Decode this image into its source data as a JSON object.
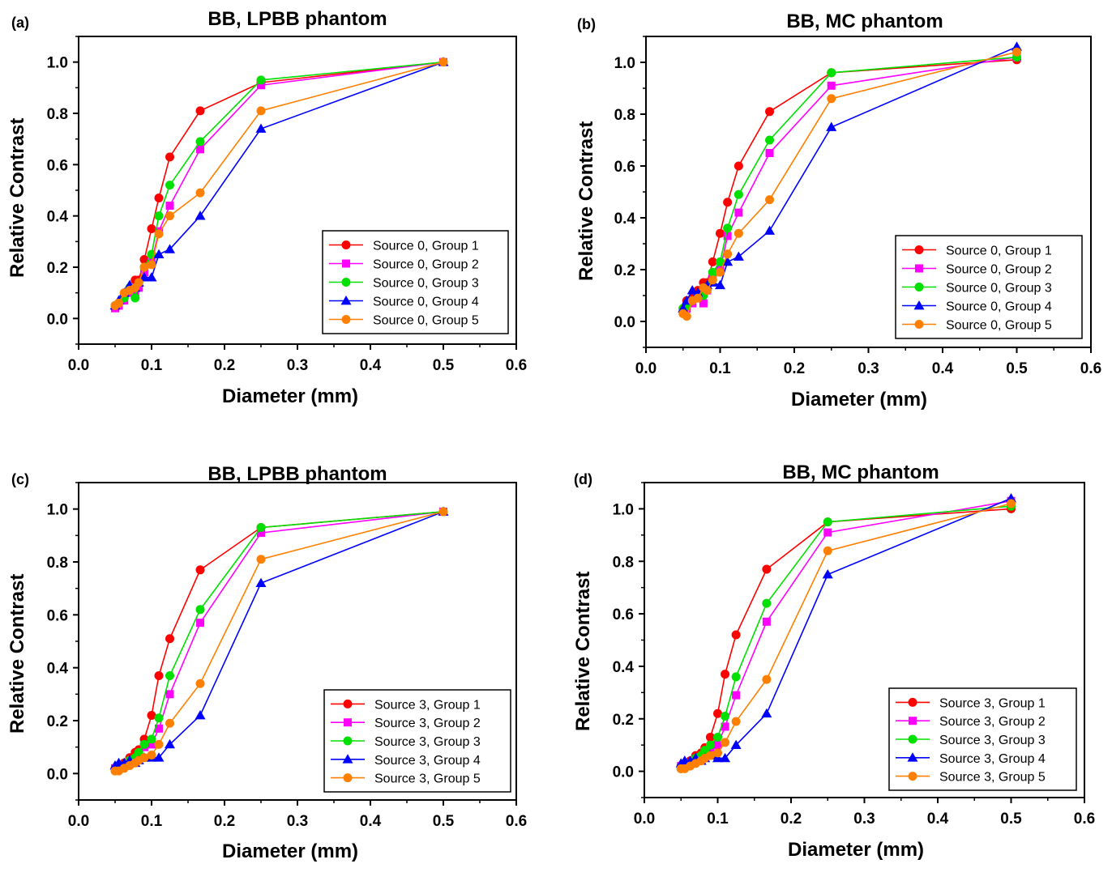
{
  "chart_data": [
    {
      "panel_label": "(a)",
      "type": "line",
      "title": "BB, LPBB phantom",
      "xlabel": "Diameter (mm)",
      "ylabel": "Relative Contrast",
      "xlim": [
        0.0,
        0.6
      ],
      "ylim": [
        -0.1,
        1.1
      ],
      "xticks": [
        "0.0",
        "0.1",
        "0.2",
        "0.3",
        "0.4",
        "0.5",
        "0.6"
      ],
      "yticks": [
        "0.0",
        "0.2",
        "0.4",
        "0.6",
        "0.8",
        "1.0"
      ],
      "legend_position": "bottom-right",
      "series": [
        {
          "name": "Source 0, Group 1",
          "color": "#ff0000",
          "marker": "circle",
          "x": [
            0.05,
            0.055,
            0.0625,
            0.07,
            0.0775,
            0.0825,
            0.09,
            0.1,
            0.11,
            0.125,
            0.1667,
            0.25,
            0.5
          ],
          "y": [
            0.05,
            0.06,
            0.09,
            0.11,
            0.15,
            0.15,
            0.23,
            0.35,
            0.47,
            0.63,
            0.81,
            0.92,
            1.0
          ]
        },
        {
          "name": "Source 0, Group 2",
          "color": "#ff00ff",
          "marker": "square",
          "x": [
            0.05,
            0.055,
            0.0625,
            0.07,
            0.0775,
            0.0825,
            0.09,
            0.1,
            0.11,
            0.125,
            0.1667,
            0.25,
            0.5
          ],
          "y": [
            0.04,
            0.05,
            0.07,
            0.1,
            0.1,
            0.12,
            0.18,
            0.22,
            0.34,
            0.44,
            0.66,
            0.91,
            1.0
          ]
        },
        {
          "name": "Source 0, Group 3",
          "color": "#00e000",
          "marker": "circle",
          "x": [
            0.05,
            0.055,
            0.0625,
            0.07,
            0.0775,
            0.0825,
            0.09,
            0.1,
            0.11,
            0.125,
            0.1667,
            0.25,
            0.5
          ],
          "y": [
            0.05,
            0.06,
            0.08,
            0.12,
            0.08,
            0.14,
            0.2,
            0.25,
            0.4,
            0.52,
            0.69,
            0.93,
            1.0
          ]
        },
        {
          "name": "Source 0, Group 4",
          "color": "#0000ff",
          "marker": "triangle",
          "x": [
            0.05,
            0.055,
            0.0625,
            0.07,
            0.0775,
            0.0825,
            0.09,
            0.1,
            0.11,
            0.125,
            0.1667,
            0.25,
            0.5
          ],
          "y": [
            0.05,
            0.07,
            0.1,
            0.13,
            0.12,
            0.14,
            0.16,
            0.16,
            0.25,
            0.27,
            0.4,
            0.74,
            1.0
          ]
        },
        {
          "name": "Source 0, Group 5",
          "color": "#ff8000",
          "marker": "circle",
          "x": [
            0.05,
            0.055,
            0.0625,
            0.07,
            0.0775,
            0.0825,
            0.09,
            0.1,
            0.11,
            0.125,
            0.1667,
            0.25,
            0.5
          ],
          "y": [
            0.05,
            0.06,
            0.1,
            0.11,
            0.12,
            0.14,
            0.2,
            0.21,
            0.33,
            0.4,
            0.49,
            0.81,
            1.0
          ]
        }
      ]
    },
    {
      "panel_label": "(b)",
      "type": "line",
      "title": "BB, MC phantom",
      "xlabel": "Diameter (mm)",
      "ylabel": "Relative Contrast",
      "xlim": [
        0.0,
        0.6
      ],
      "ylim": [
        -0.1,
        1.1
      ],
      "xticks": [
        "0.0",
        "0.1",
        "0.2",
        "0.3",
        "0.4",
        "0.5",
        "0.6"
      ],
      "yticks": [
        "0.0",
        "0.2",
        "0.4",
        "0.6",
        "0.8",
        "1.0"
      ],
      "legend_position": "bottom-right",
      "series": [
        {
          "name": "Source 0, Group 1",
          "color": "#ff0000",
          "marker": "circle",
          "x": [
            0.05,
            0.055,
            0.0625,
            0.07,
            0.0775,
            0.0825,
            0.09,
            0.1,
            0.11,
            0.125,
            0.1667,
            0.25,
            0.5
          ],
          "y": [
            0.05,
            0.08,
            0.09,
            0.12,
            0.15,
            0.15,
            0.23,
            0.34,
            0.46,
            0.6,
            0.81,
            0.96,
            1.01
          ]
        },
        {
          "name": "Source 0, Group 2",
          "color": "#ff00ff",
          "marker": "square",
          "x": [
            0.05,
            0.055,
            0.0625,
            0.07,
            0.0775,
            0.0825,
            0.09,
            0.1,
            0.11,
            0.125,
            0.1667,
            0.25,
            0.5
          ],
          "y": [
            0.04,
            0.05,
            0.07,
            0.09,
            0.07,
            0.12,
            0.17,
            0.2,
            0.33,
            0.42,
            0.65,
            0.91,
            1.02
          ]
        },
        {
          "name": "Source 0, Group 3",
          "color": "#00e000",
          "marker": "circle",
          "x": [
            0.05,
            0.055,
            0.0625,
            0.07,
            0.0775,
            0.0825,
            0.09,
            0.1,
            0.11,
            0.125,
            0.1667,
            0.25,
            0.5
          ],
          "y": [
            0.05,
            0.06,
            0.08,
            0.1,
            0.1,
            0.13,
            0.19,
            0.23,
            0.36,
            0.49,
            0.7,
            0.96,
            1.02
          ]
        },
        {
          "name": "Source 0, Group 4",
          "color": "#0000ff",
          "marker": "triangle",
          "x": [
            0.05,
            0.055,
            0.0625,
            0.07,
            0.0775,
            0.0825,
            0.09,
            0.1,
            0.11,
            0.125,
            0.1667,
            0.25,
            0.5
          ],
          "y": [
            0.05,
            0.08,
            0.12,
            0.11,
            0.13,
            0.14,
            0.15,
            0.14,
            0.23,
            0.25,
            0.35,
            0.75,
            1.06
          ]
        },
        {
          "name": "Source 0, Group 5",
          "color": "#ff8000",
          "marker": "circle",
          "x": [
            0.05,
            0.055,
            0.0625,
            0.07,
            0.0775,
            0.0825,
            0.09,
            0.1,
            0.11,
            0.125,
            0.1667,
            0.25,
            0.5
          ],
          "y": [
            0.03,
            0.02,
            0.08,
            0.09,
            0.13,
            0.12,
            0.16,
            0.19,
            0.26,
            0.34,
            0.47,
            0.86,
            1.04
          ]
        }
      ]
    },
    {
      "panel_label": "(c)",
      "type": "line",
      "title": "BB, LPBB phantom",
      "xlabel": "Diameter (mm)",
      "ylabel": "Relative Contrast",
      "xlim": [
        0.0,
        0.6
      ],
      "ylim": [
        -0.1,
        1.1
      ],
      "xticks": [
        "0.0",
        "0.1",
        "0.2",
        "0.3",
        "0.4",
        "0.5",
        "0.6"
      ],
      "yticks": [
        "0.0",
        "0.2",
        "0.4",
        "0.6",
        "0.8",
        "1.0"
      ],
      "legend_position": "bottom-right",
      "series": [
        {
          "name": "Source 3, Group 1",
          "color": "#ff0000",
          "marker": "circle",
          "x": [
            0.05,
            0.055,
            0.0625,
            0.07,
            0.0775,
            0.0825,
            0.09,
            0.1,
            0.11,
            0.125,
            0.1667,
            0.25,
            0.5
          ],
          "y": [
            0.02,
            0.03,
            0.04,
            0.06,
            0.08,
            0.09,
            0.13,
            0.22,
            0.37,
            0.51,
            0.77,
            0.93,
            0.99
          ]
        },
        {
          "name": "Source 3, Group 2",
          "color": "#ff00ff",
          "marker": "square",
          "x": [
            0.05,
            0.055,
            0.0625,
            0.07,
            0.0775,
            0.0825,
            0.09,
            0.1,
            0.11,
            0.125,
            0.1667,
            0.25,
            0.5
          ],
          "y": [
            0.02,
            0.02,
            0.03,
            0.04,
            0.05,
            0.07,
            0.1,
            0.11,
            0.17,
            0.3,
            0.57,
            0.91,
            0.99
          ]
        },
        {
          "name": "Source 3, Group 3",
          "color": "#00e000",
          "marker": "circle",
          "x": [
            0.05,
            0.055,
            0.0625,
            0.07,
            0.0775,
            0.0825,
            0.09,
            0.1,
            0.11,
            0.125,
            0.1667,
            0.25,
            0.5
          ],
          "y": [
            0.01,
            0.02,
            0.03,
            0.05,
            0.06,
            0.08,
            0.11,
            0.13,
            0.21,
            0.37,
            0.62,
            0.93,
            0.99
          ]
        },
        {
          "name": "Source 3, Group 4",
          "color": "#0000ff",
          "marker": "triangle",
          "x": [
            0.05,
            0.055,
            0.0625,
            0.07,
            0.0775,
            0.0825,
            0.09,
            0.1,
            0.11,
            0.125,
            0.1667,
            0.25,
            0.5
          ],
          "y": [
            0.03,
            0.04,
            0.04,
            0.05,
            0.04,
            0.05,
            0.06,
            0.06,
            0.06,
            0.11,
            0.22,
            0.72,
            0.99
          ]
        },
        {
          "name": "Source 3, Group 5",
          "color": "#ff8000",
          "marker": "circle",
          "x": [
            0.05,
            0.055,
            0.0625,
            0.07,
            0.0775,
            0.0825,
            0.09,
            0.1,
            0.11,
            0.125,
            0.1667,
            0.25,
            0.5
          ],
          "y": [
            0.01,
            0.01,
            0.02,
            0.03,
            0.04,
            0.05,
            0.06,
            0.07,
            0.11,
            0.19,
            0.34,
            0.81,
            0.99
          ]
        }
      ]
    },
    {
      "panel_label": "(d)",
      "type": "line",
      "title": "BB, MC phantom",
      "xlabel": "Diameter (mm)",
      "ylabel": "Relative Contrast",
      "xlim": [
        0.0,
        0.6
      ],
      "ylim": [
        -0.1,
        1.1
      ],
      "xticks": [
        "0.0",
        "0.1",
        "0.2",
        "0.3",
        "0.4",
        "0.5",
        "0.6"
      ],
      "yticks": [
        "0.0",
        "0.2",
        "0.4",
        "0.6",
        "0.8",
        "1.0"
      ],
      "legend_position": "bottom-right",
      "series": [
        {
          "name": "Source 3, Group 1",
          "color": "#ff0000",
          "marker": "circle",
          "x": [
            0.05,
            0.055,
            0.0625,
            0.07,
            0.0775,
            0.0825,
            0.09,
            0.1,
            0.11,
            0.125,
            0.1667,
            0.25,
            0.5
          ],
          "y": [
            0.02,
            0.03,
            0.04,
            0.06,
            0.07,
            0.09,
            0.13,
            0.22,
            0.37,
            0.52,
            0.77,
            0.95,
            1.0
          ]
        },
        {
          "name": "Source 3, Group 2",
          "color": "#ff00ff",
          "marker": "square",
          "x": [
            0.05,
            0.055,
            0.0625,
            0.07,
            0.0775,
            0.0825,
            0.09,
            0.1,
            0.11,
            0.125,
            0.1667,
            0.25,
            0.5
          ],
          "y": [
            0.02,
            0.02,
            0.03,
            0.04,
            0.05,
            0.07,
            0.09,
            0.1,
            0.17,
            0.29,
            0.57,
            0.91,
            1.03
          ]
        },
        {
          "name": "Source 3, Group 3",
          "color": "#00e000",
          "marker": "circle",
          "x": [
            0.05,
            0.055,
            0.0625,
            0.07,
            0.0775,
            0.0825,
            0.09,
            0.1,
            0.11,
            0.125,
            0.1667,
            0.25,
            0.5
          ],
          "y": [
            0.01,
            0.02,
            0.03,
            0.05,
            0.06,
            0.08,
            0.1,
            0.13,
            0.21,
            0.36,
            0.64,
            0.95,
            1.01
          ]
        },
        {
          "name": "Source 3, Group 4",
          "color": "#0000ff",
          "marker": "triangle",
          "x": [
            0.05,
            0.055,
            0.0625,
            0.07,
            0.0775,
            0.0825,
            0.09,
            0.1,
            0.11,
            0.125,
            0.1667,
            0.25,
            0.5
          ],
          "y": [
            0.03,
            0.04,
            0.04,
            0.05,
            0.04,
            0.05,
            0.06,
            0.05,
            0.05,
            0.1,
            0.22,
            0.75,
            1.04
          ]
        },
        {
          "name": "Source 3, Group 5",
          "color": "#ff8000",
          "marker": "circle",
          "x": [
            0.05,
            0.055,
            0.0625,
            0.07,
            0.0775,
            0.0825,
            0.09,
            0.1,
            0.11,
            0.125,
            0.1667,
            0.25,
            0.5
          ],
          "y": [
            0.01,
            0.01,
            0.02,
            0.03,
            0.04,
            0.05,
            0.06,
            0.07,
            0.11,
            0.19,
            0.35,
            0.84,
            1.02
          ]
        }
      ]
    }
  ]
}
